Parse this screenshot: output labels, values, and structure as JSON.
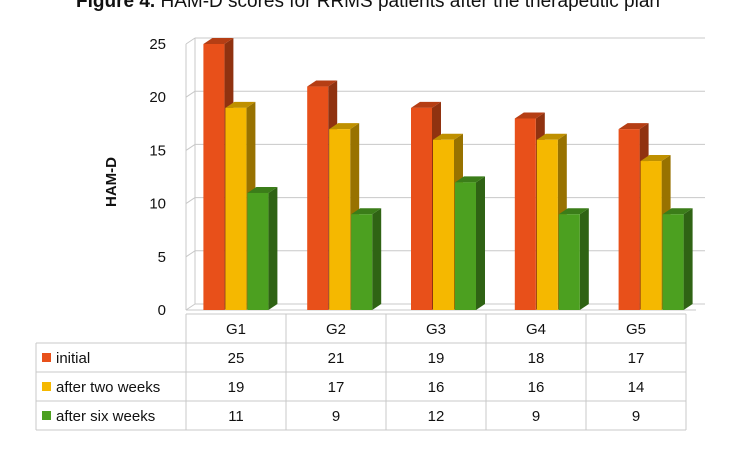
{
  "figure_label": "Figure 4.",
  "figure_caption": "HAM-D scores for RRMS patients after the therapeutic plan",
  "chart_data": {
    "type": "bar",
    "title": "Figure 4. HAM-D scores for RRMS patients after the therapeutic plan",
    "categories": [
      "G1",
      "G2",
      "G3",
      "G4",
      "G5"
    ],
    "series": [
      {
        "name": "initial",
        "values": [
          25,
          21,
          19,
          18,
          17
        ],
        "color": "#E8501A"
      },
      {
        "name": "after two weeks",
        "values": [
          19,
          17,
          16,
          16,
          14
        ],
        "color": "#F5B800"
      },
      {
        "name": "after six weeks",
        "values": [
          11,
          9,
          12,
          9,
          9
        ],
        "color": "#4CA020"
      }
    ],
    "ylabel": "HAM-D",
    "ylim": [
      0,
      25
    ],
    "yticks": [
      0,
      5,
      10,
      15,
      20,
      25
    ],
    "grid": true,
    "legend": "data table below chart",
    "style": "3d"
  }
}
